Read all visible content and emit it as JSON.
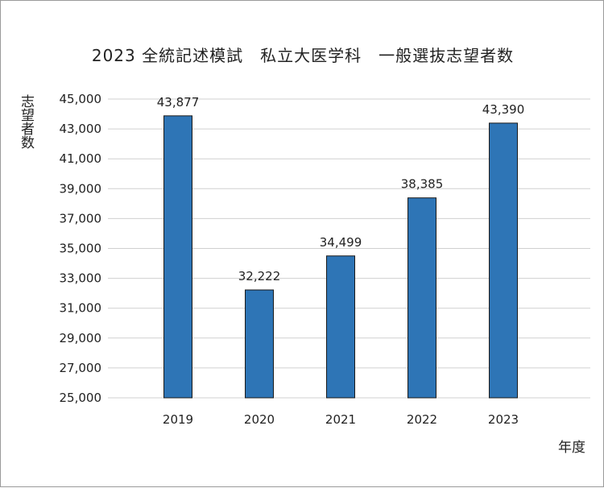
{
  "chart_data": {
    "type": "bar",
    "title": "2023 全統記述模試　私立大医学科　一般選抜志望者数",
    "xlabel": "年度",
    "ylabel": "志望者数",
    "categories": [
      "2019",
      "2020",
      "2021",
      "2022",
      "2023"
    ],
    "values": [
      43877,
      32222,
      34499,
      38385,
      43390
    ],
    "data_labels": [
      "43,877",
      "32,222",
      "34,499",
      "38,385",
      "43,390"
    ],
    "ylim": [
      25000,
      45000
    ],
    "yticks": [
      25000,
      27000,
      29000,
      31000,
      33000,
      35000,
      37000,
      39000,
      41000,
      43000,
      45000
    ],
    "ytick_labels": [
      "25,000",
      "27,000",
      "29,000",
      "31,000",
      "33,000",
      "35,000",
      "37,000",
      "39,000",
      "41,000",
      "43,000",
      "45,000"
    ],
    "grid": true,
    "legend": "none",
    "colors": {
      "bar": "#2e75b6",
      "bar_edge": "#1a1a1a",
      "grid": "#d0d0d0"
    }
  }
}
